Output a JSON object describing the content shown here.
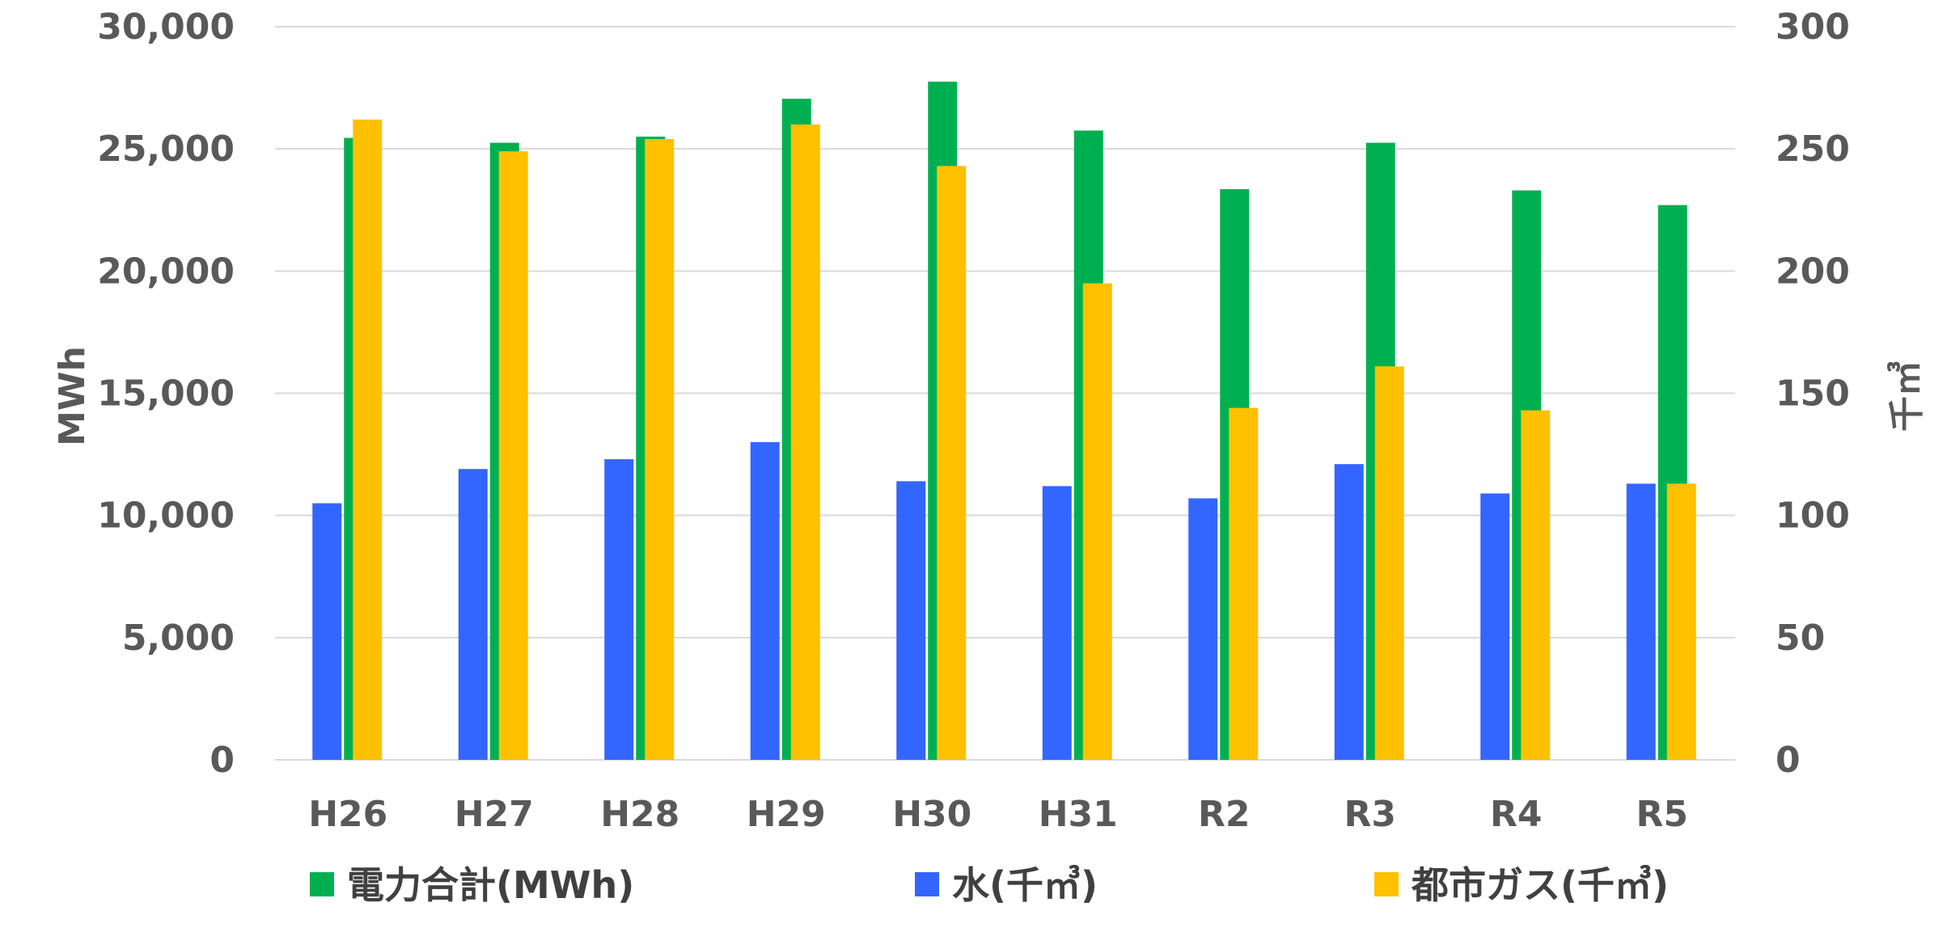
{
  "chart_data": {
    "type": "bar",
    "categories": [
      "H26",
      "H27",
      "H28",
      "H29",
      "H30",
      "H31",
      "R2",
      "R3",
      "R4",
      "R5"
    ],
    "y_left": {
      "label": "MWh",
      "ylim": [
        0,
        30000
      ],
      "ticks": [
        "0",
        "5,000",
        "10,000",
        "15,000",
        "20,000",
        "25,000",
        "30,000"
      ]
    },
    "y_right": {
      "label": "千㎥",
      "ylim": [
        0,
        300
      ],
      "ticks": [
        "0",
        "50",
        "100",
        "150",
        "200",
        "250",
        "300"
      ]
    },
    "grid": true,
    "legend_position": "bottom",
    "series": [
      {
        "name": "電力合計(MWh)",
        "axis": "left",
        "color": "#00B050",
        "values": [
          25450,
          25250,
          25500,
          27050,
          27750,
          25750,
          23350,
          25250,
          23300,
          22700
        ]
      },
      {
        "name": "水(千㎥)",
        "axis": "right",
        "color": "#3366FF",
        "values": [
          105,
          119,
          123,
          130,
          114,
          112,
          107,
          121,
          109,
          113
        ]
      },
      {
        "name": "都市ガス(千㎥)",
        "axis": "right",
        "color": "#FFC000",
        "values": [
          262,
          249,
          254,
          260,
          243,
          195,
          144,
          161,
          143,
          113
        ]
      }
    ]
  }
}
